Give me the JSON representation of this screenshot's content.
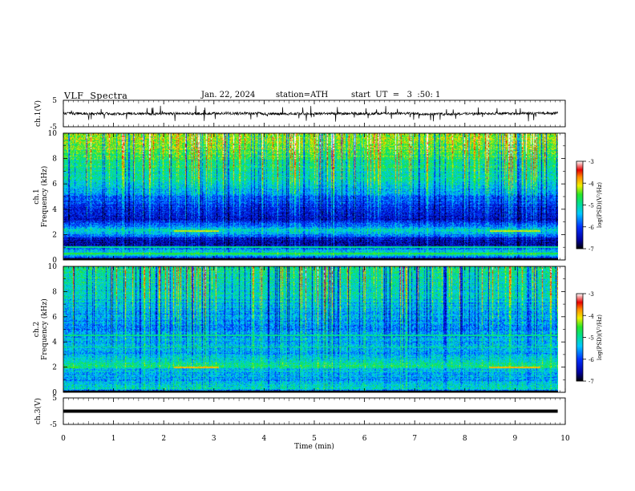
{
  "header": {
    "title": "VLF  Spectra",
    "date": "Jan. 22, 2024",
    "station": "station=ATH",
    "start": "start  UT  =   3  :50: 1"
  },
  "chart_data": [
    {
      "type": "line",
      "panel": "ch1-waveform",
      "ylabel": "ch.1(V)",
      "ylim": [
        -5,
        5
      ],
      "yticks": [
        "5",
        "-5"
      ],
      "x_range_min": [
        0,
        9.85
      ],
      "level_V": 0,
      "noise_amplitude_V": 0.8
    },
    {
      "type": "heatmap",
      "panel": "ch1-spectrogram",
      "ylabel_channel": "ch.1",
      "ylabel": "Frequency  (kHz)",
      "ylim": [
        0,
        10
      ],
      "yticks": [
        "0",
        "2",
        "4",
        "6",
        "8",
        "10"
      ],
      "x_range_min": [
        0,
        9.85
      ],
      "colorbar": {
        "label": "log(PSD)(V²/Hz)",
        "range": [
          -7,
          -3
        ],
        "ticks": [
          "-3",
          "-4",
          "-5",
          "-6",
          "-7"
        ]
      },
      "profile": [
        {
          "f": 0.0,
          "v": -7.0
        },
        {
          "f": 0.4,
          "v": -5.0
        },
        {
          "f": 0.8,
          "v": -5.3
        },
        {
          "f": 1.0,
          "v": -6.4
        },
        {
          "f": 1.5,
          "v": -6.6
        },
        {
          "f": 2.0,
          "v": -5.6
        },
        {
          "f": 2.3,
          "v": -5.0
        },
        {
          "f": 2.7,
          "v": -5.8
        },
        {
          "f": 3.2,
          "v": -6.3
        },
        {
          "f": 4.0,
          "v": -6.2
        },
        {
          "f": 5.0,
          "v": -5.7
        },
        {
          "f": 6.0,
          "v": -5.2
        },
        {
          "f": 7.0,
          "v": -5.0
        },
        {
          "f": 8.0,
          "v": -4.7
        },
        {
          "f": 9.0,
          "v": -4.4
        },
        {
          "f": 10.0,
          "v": -4.3
        }
      ],
      "lines": [
        {
          "f": 2.3,
          "v": -4.2,
          "t": [
            2.2,
            3.1
          ]
        },
        {
          "f": 2.3,
          "v": -4.2,
          "t": [
            8.5,
            9.5
          ]
        },
        {
          "f": 1.0,
          "v": -4.9,
          "t": [
            0,
            9.85
          ]
        },
        {
          "f": 0.5,
          "v": -4.6,
          "t": [
            0,
            9.85
          ]
        }
      ]
    },
    {
      "type": "heatmap",
      "panel": "ch2-spectrogram",
      "ylabel_channel": "ch.2",
      "ylabel": "Frequency  (kHz)",
      "ylim": [
        0,
        10
      ],
      "yticks": [
        "0",
        "2",
        "4",
        "6",
        "8",
        "10"
      ],
      "x_range_min": [
        0,
        9.85
      ],
      "colorbar": {
        "label": "log(PSD)(V²/Hz)",
        "range": [
          -7,
          -3
        ],
        "ticks": [
          "-3",
          "-4",
          "-5",
          "-6",
          "-7"
        ]
      },
      "profile": [
        {
          "f": 0.0,
          "v": -7.0
        },
        {
          "f": 0.3,
          "v": -5.0
        },
        {
          "f": 1.0,
          "v": -5.6
        },
        {
          "f": 1.8,
          "v": -5.3
        },
        {
          "f": 2.1,
          "v": -4.8
        },
        {
          "f": 3.0,
          "v": -5.5
        },
        {
          "f": 4.0,
          "v": -5.4
        },
        {
          "f": 5.0,
          "v": -5.6
        },
        {
          "f": 6.0,
          "v": -5.5
        },
        {
          "f": 7.0,
          "v": -5.3
        },
        {
          "f": 8.0,
          "v": -5.1
        },
        {
          "f": 9.0,
          "v": -5.0
        },
        {
          "f": 10.0,
          "v": -4.9
        }
      ],
      "lines": [
        {
          "f": 2.0,
          "v": -3.9,
          "t": [
            2.2,
            3.1
          ]
        },
        {
          "f": 2.0,
          "v": -3.9,
          "t": [
            8.5,
            9.5
          ]
        },
        {
          "f": 2.0,
          "v": -4.6,
          "t": [
            0,
            0.3
          ]
        },
        {
          "f": 3.6,
          "v": -4.9,
          "t": [
            0,
            9.85
          ]
        },
        {
          "f": 4.5,
          "v": -4.9,
          "t": [
            0,
            9.85
          ]
        }
      ]
    },
    {
      "type": "line",
      "panel": "ch3-waveform",
      "ylabel": "ch.3(V)",
      "ylim": [
        -5,
        5
      ],
      "yticks": [
        "5",
        "-5"
      ],
      "xlabel": "Time  (min)",
      "xlim": [
        0,
        10
      ],
      "xticks": [
        "0",
        "1",
        "2",
        "3",
        "4",
        "5",
        "6",
        "7",
        "8",
        "9",
        "10"
      ],
      "x_range_min": [
        0,
        9.85
      ],
      "level_V": 0
    }
  ]
}
